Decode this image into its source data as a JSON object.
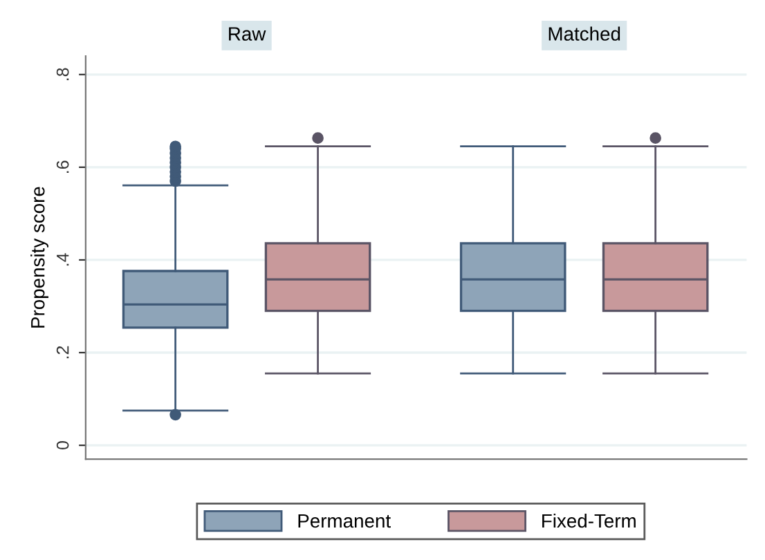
{
  "chart_data": {
    "type": "box",
    "ylabel": "Propensity score",
    "categories": [
      "Raw",
      "Matched"
    ],
    "ylim": [
      -0.03,
      0.84
    ],
    "yticks": [
      {
        "value": 0,
        "label": "0"
      },
      {
        "value": 0.2,
        "label": ".2"
      },
      {
        "value": 0.4,
        "label": ".4"
      },
      {
        "value": 0.6,
        "label": ".6"
      },
      {
        "value": 0.8,
        "label": ".8"
      }
    ],
    "grid": "y",
    "legend": "bottom",
    "series": [
      {
        "name": "Permanent",
        "color": "#8ea4b8",
        "boxes": [
          {
            "low": 0.075,
            "q1": 0.254,
            "median": 0.304,
            "q3": 0.376,
            "high": 0.561,
            "outliers": [
              0.066,
              0.57,
              0.58,
              0.59,
              0.6,
              0.61,
              0.62,
              0.63,
              0.64,
              0.645
            ]
          },
          {
            "low": 0.155,
            "q1": 0.29,
            "median": 0.358,
            "q3": 0.436,
            "high": 0.645
          }
        ]
      },
      {
        "name": "Fixed-Term",
        "color": "#c8999b",
        "boxes": [
          {
            "low": 0.155,
            "q1": 0.29,
            "median": 0.358,
            "q3": 0.436,
            "high": 0.645,
            "outliers": [
              0.663
            ]
          },
          {
            "low": 0.155,
            "q1": 0.29,
            "median": 0.358,
            "q3": 0.436,
            "high": 0.645,
            "outliers": [
              0.663
            ]
          }
        ]
      }
    ]
  }
}
